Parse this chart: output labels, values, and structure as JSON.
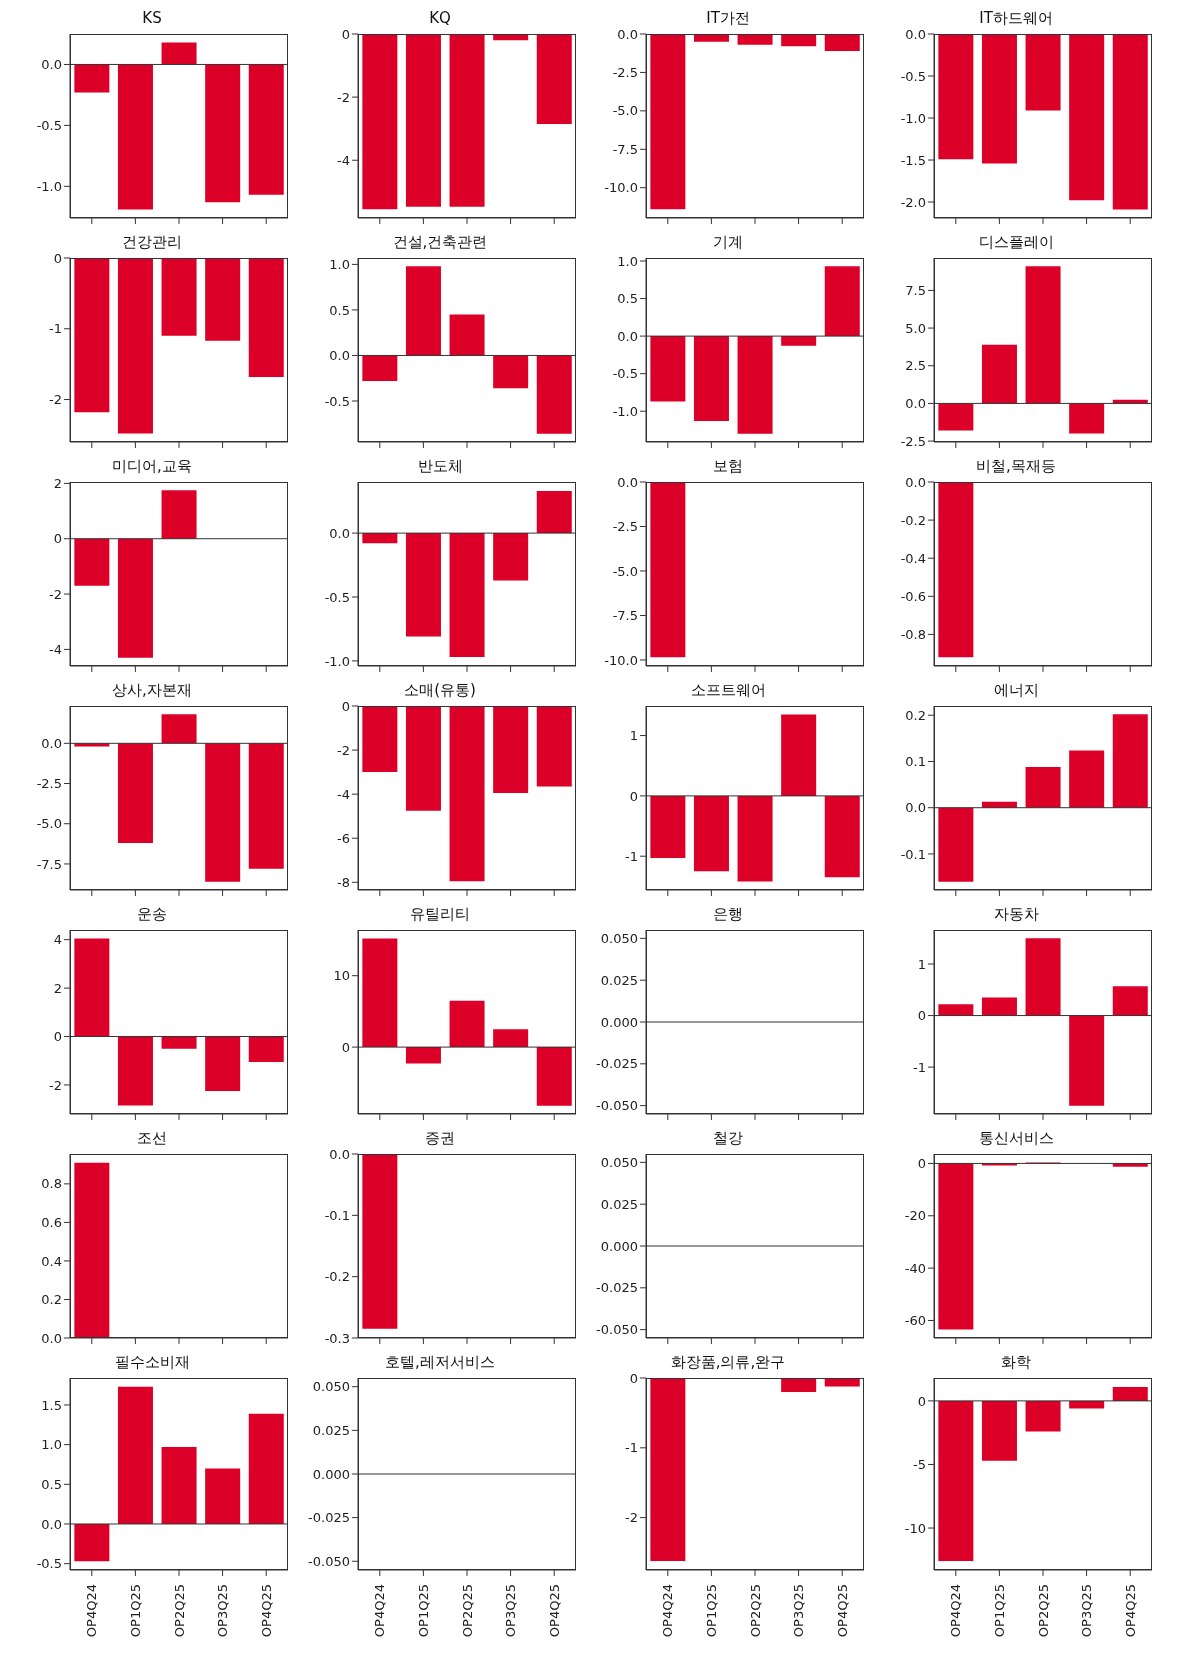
{
  "chart_data": [
    {
      "type": "bar",
      "title": "KS",
      "categories": [
        null,
        null,
        null,
        null,
        null
      ],
      "values": [
        -0.23,
        -1.19,
        0.18,
        -1.13,
        -1.07
      ],
      "color": "#dc0028",
      "ylim": [
        -1.26,
        0.25
      ],
      "yticks": [
        {
          "value": -1,
          "label": "-1.0"
        },
        {
          "value": -0.5,
          "label": "-0.5"
        },
        {
          "value": 0,
          "label": "0.0"
        }
      ],
      "ref_lines": [
        {
          "axis": "y",
          "value": 0
        }
      ],
      "tick_labels": "y"
    },
    {
      "type": "bar",
      "title": "KQ",
      "categories": [
        null,
        null,
        null,
        null,
        null
      ],
      "values": [
        -5.55,
        -5.47,
        -5.47,
        -0.2,
        -2.85
      ],
      "color": "#dc0028",
      "ylim": [
        -5.83,
        0
      ],
      "yticks": [
        -4,
        -2,
        0
      ],
      "tick_labels": "y"
    },
    {
      "type": "bar",
      "title": "IT가전",
      "categories": [
        null,
        null,
        null,
        null,
        null
      ],
      "values": [
        -11.4,
        -0.5,
        -0.7,
        -0.8,
        -1.1
      ],
      "color": "#dc0028",
      "ylim": [
        -11.97,
        0
      ],
      "yticks": [
        {
          "value": -10,
          "label": "-10.0"
        },
        {
          "value": -7.5,
          "label": "-7.5"
        },
        {
          "value": -5,
          "label": "-5.0"
        },
        {
          "value": -2.5,
          "label": "-2.5"
        },
        {
          "value": 0,
          "label": "0.0"
        }
      ],
      "tick_labels": "y"
    },
    {
      "type": "bar",
      "title": "IT하드웨어",
      "categories": [
        null,
        null,
        null,
        null,
        null
      ],
      "values": [
        -1.49,
        -1.54,
        -0.91,
        -1.98,
        -2.09
      ],
      "color": "#dc0028",
      "ylim": [
        -2.19,
        0
      ],
      "yticks": [
        {
          "value": -2,
          "label": "-2.0"
        },
        {
          "value": -1.5,
          "label": "-1.5"
        },
        {
          "value": -1,
          "label": "-1.0"
        },
        {
          "value": -0.5,
          "label": "-0.5"
        },
        {
          "value": 0,
          "label": "0.0"
        }
      ],
      "tick_labels": "y"
    },
    {
      "type": "bar",
      "title": "건강관리",
      "categories": [
        null,
        null,
        null,
        null,
        null
      ],
      "values": [
        -2.18,
        -2.48,
        -1.1,
        -1.17,
        -1.68
      ],
      "color": "#dc0028",
      "ylim": [
        -2.6,
        0
      ],
      "yticks": [
        -2,
        -1,
        0
      ],
      "tick_labels": "y"
    },
    {
      "type": "bar",
      "title": "건설,건축관련",
      "categories": [
        null,
        null,
        null,
        null,
        null
      ],
      "values": [
        -0.28,
        0.98,
        0.45,
        -0.36,
        -0.86
      ],
      "color": "#dc0028",
      "ylim": [
        -0.95,
        1.07
      ],
      "yticks": [
        {
          "value": -0.5,
          "label": "-0.5"
        },
        {
          "value": 0,
          "label": "0.0"
        },
        {
          "value": 0.5,
          "label": "0.5"
        },
        {
          "value": 1,
          "label": "1.0"
        }
      ],
      "ref_lines": [
        {
          "axis": "y",
          "value": 0
        }
      ],
      "tick_labels": "y"
    },
    {
      "type": "bar",
      "title": "기계",
      "categories": [
        null,
        null,
        null,
        null,
        null
      ],
      "values": [
        -0.87,
        -1.13,
        -1.3,
        -0.13,
        0.93
      ],
      "color": "#dc0028",
      "ylim": [
        -1.41,
        1.04
      ],
      "yticks": [
        {
          "value": -1,
          "label": "-1.0"
        },
        {
          "value": -0.5,
          "label": "-0.5"
        },
        {
          "value": 0,
          "label": "0.0"
        },
        {
          "value": 0.5,
          "label": "0.5"
        },
        {
          "value": 1,
          "label": "1.0"
        }
      ],
      "ref_lines": [
        {
          "axis": "y",
          "value": 0
        }
      ],
      "tick_labels": "y"
    },
    {
      "type": "bar",
      "title": "디스플레이",
      "categories": [
        null,
        null,
        null,
        null,
        null
      ],
      "values": [
        -1.8,
        3.9,
        9.1,
        -2.0,
        0.25
      ],
      "color": "#dc0028",
      "ylim": [
        -2.56,
        9.65
      ],
      "yticks": [
        {
          "value": -2.5,
          "label": "-2.5"
        },
        {
          "value": 0,
          "label": "0.0"
        },
        {
          "value": 2.5,
          "label": "2.5"
        },
        {
          "value": 5,
          "label": "5.0"
        },
        {
          "value": 7.5,
          "label": "7.5"
        }
      ],
      "ref_lines": [
        {
          "axis": "y",
          "value": 0
        }
      ],
      "tick_labels": "y"
    },
    {
      "type": "bar",
      "title": "미디어,교육",
      "categories": [
        null,
        null,
        null,
        null,
        null
      ],
      "values": [
        -1.7,
        -4.3,
        1.75,
        null,
        null
      ],
      "color": "#dc0028",
      "ylim": [
        -4.6,
        2.05
      ],
      "yticks": [
        -4,
        -2,
        0,
        2
      ],
      "ref_lines": [
        {
          "axis": "y",
          "value": 0
        }
      ],
      "tick_labels": "y"
    },
    {
      "type": "bar",
      "title": "반도체",
      "categories": [
        null,
        null,
        null,
        null,
        null
      ],
      "values": [
        -0.08,
        -0.81,
        -0.97,
        -0.37,
        0.33
      ],
      "color": "#dc0028",
      "ylim": [
        -1.04,
        0.4
      ],
      "yticks": [
        {
          "value": -1,
          "label": "-1.0"
        },
        {
          "value": -0.5,
          "label": "-0.5"
        },
        {
          "value": 0,
          "label": "0.0"
        }
      ],
      "ref_lines": [
        {
          "axis": "y",
          "value": 0
        }
      ],
      "tick_labels": "y"
    },
    {
      "type": "bar",
      "title": "보험",
      "categories": [
        null,
        null,
        null,
        null,
        null
      ],
      "values": [
        -9.85,
        null,
        null,
        null,
        null
      ],
      "color": "#dc0028",
      "ylim": [
        -10.34,
        0
      ],
      "yticks": [
        {
          "value": -10,
          "label": "-10.0"
        },
        {
          "value": -7.5,
          "label": "-7.5"
        },
        {
          "value": -5,
          "label": "-5.0"
        },
        {
          "value": -2.5,
          "label": "-2.5"
        },
        {
          "value": 0,
          "label": "0.0"
        }
      ],
      "tick_labels": "y"
    },
    {
      "type": "bar",
      "title": "비철,목재등",
      "categories": [
        null,
        null,
        null,
        null,
        null
      ],
      "values": [
        -0.92,
        null,
        null,
        null,
        null
      ],
      "color": "#dc0028",
      "ylim": [
        -0.966,
        0
      ],
      "yticks": [
        {
          "value": -0.8,
          "label": "-0.8"
        },
        {
          "value": -0.6,
          "label": "-0.6"
        },
        {
          "value": -0.4,
          "label": "-0.4"
        },
        {
          "value": -0.2,
          "label": "-0.2"
        },
        {
          "value": 0,
          "label": "0.0"
        }
      ],
      "tick_labels": "y"
    },
    {
      "type": "bar",
      "title": "상사,자본재",
      "categories": [
        null,
        null,
        null,
        null,
        null
      ],
      "values": [
        -0.2,
        -6.2,
        1.8,
        -8.6,
        -7.8
      ],
      "color": "#dc0028",
      "ylim": [
        -9.12,
        2.32
      ],
      "yticks": [
        {
          "value": -7.5,
          "label": "-7.5"
        },
        {
          "value": -5,
          "label": "-5.0"
        },
        {
          "value": -2.5,
          "label": "-2.5"
        },
        {
          "value": 0,
          "label": "0.0"
        }
      ],
      "ref_lines": [
        {
          "axis": "y",
          "value": 0
        }
      ],
      "tick_labels": "y"
    },
    {
      "type": "bar",
      "title": "소매(유통)",
      "categories": [
        null,
        null,
        null,
        null,
        null
      ],
      "values": [
        -3.0,
        -4.75,
        -7.95,
        -3.95,
        -3.65
      ],
      "color": "#dc0028",
      "ylim": [
        -8.35,
        0
      ],
      "yticks": [
        -8,
        -6,
        -4,
        -2,
        0
      ],
      "tick_labels": "y"
    },
    {
      "type": "bar",
      "title": "소프트웨어",
      "categories": [
        null,
        null,
        null,
        null,
        null
      ],
      "values": [
        -1.03,
        -1.25,
        -1.42,
        1.35,
        -1.35
      ],
      "color": "#dc0028",
      "ylim": [
        -1.56,
        1.49
      ],
      "yticks": [
        -1,
        0,
        1
      ],
      "ref_lines": [
        {
          "axis": "y",
          "value": 0
        }
      ],
      "tick_labels": "y"
    },
    {
      "type": "bar",
      "title": "에너지",
      "categories": [
        null,
        null,
        null,
        null,
        null
      ],
      "values": [
        -0.16,
        0.013,
        0.088,
        0.124,
        0.202
      ],
      "color": "#dc0028",
      "ylim": [
        -0.178,
        0.22
      ],
      "yticks": [
        {
          "value": -0.1,
          "label": "-0.1"
        },
        {
          "value": 0,
          "label": "0.0"
        },
        {
          "value": 0.1,
          "label": "0.1"
        },
        {
          "value": 0.2,
          "label": "0.2"
        }
      ],
      "ref_lines": [
        {
          "axis": "y",
          "value": 0
        }
      ],
      "tick_labels": "y"
    },
    {
      "type": "bar",
      "title": "운송",
      "categories": [
        null,
        null,
        null,
        null,
        null
      ],
      "values": [
        4.05,
        -2.85,
        -0.5,
        -2.25,
        -1.05
      ],
      "color": "#dc0028",
      "ylim": [
        -3.2,
        4.4
      ],
      "yticks": [
        -2,
        0,
        2,
        4
      ],
      "ref_lines": [
        {
          "axis": "y",
          "value": 0
        }
      ],
      "tick_labels": "y"
    },
    {
      "type": "bar",
      "title": "유틸리티",
      "categories": [
        null,
        null,
        null,
        null,
        null
      ],
      "values": [
        15.2,
        -2.3,
        6.5,
        2.5,
        -8.2
      ],
      "color": "#dc0028",
      "ylim": [
        -9.37,
        16.4
      ],
      "yticks": [
        0,
        10
      ],
      "ref_lines": [
        {
          "axis": "y",
          "value": 0
        }
      ],
      "tick_labels": "y"
    },
    {
      "type": "bar",
      "title": "은행",
      "categories": [
        null,
        null,
        null,
        null,
        null
      ],
      "values": [
        null,
        null,
        null,
        null,
        null
      ],
      "color": "#dc0028",
      "ylim": [
        -0.055,
        0.055
      ],
      "yticks": [
        {
          "value": -0.05,
          "label": "-0.050"
        },
        {
          "value": -0.025,
          "label": "-0.025"
        },
        {
          "value": 0,
          "label": "0.000"
        },
        {
          "value": 0.025,
          "label": "0.025"
        },
        {
          "value": 0.05,
          "label": "0.050"
        }
      ],
      "ref_lines": [
        {
          "axis": "y",
          "value": 0
        }
      ],
      "tick_labels": "y"
    },
    {
      "type": "bar",
      "title": "자동차",
      "categories": [
        null,
        null,
        null,
        null,
        null
      ],
      "values": [
        0.22,
        0.35,
        1.5,
        -1.75,
        0.57
      ],
      "color": "#dc0028",
      "ylim": [
        -1.91,
        1.66
      ],
      "yticks": [
        -1,
        0,
        1
      ],
      "ref_lines": [
        {
          "axis": "y",
          "value": 0
        }
      ],
      "tick_labels": "y"
    },
    {
      "type": "bar",
      "title": "조선",
      "categories": [
        null,
        null,
        null,
        null,
        null
      ],
      "values": [
        0.91,
        null,
        null,
        null,
        null
      ],
      "color": "#dc0028",
      "ylim": [
        0,
        0.955
      ],
      "yticks": [
        {
          "value": 0,
          "label": "0.0"
        },
        {
          "value": 0.2,
          "label": "0.2"
        },
        {
          "value": 0.4,
          "label": "0.4"
        },
        {
          "value": 0.6,
          "label": "0.6"
        },
        {
          "value": 0.8,
          "label": "0.8"
        }
      ],
      "tick_labels": "y"
    },
    {
      "type": "bar",
      "title": "증권",
      "categories": [
        null,
        null,
        null,
        null,
        null
      ],
      "values": [
        -0.285,
        null,
        null,
        null,
        null
      ],
      "color": "#dc0028",
      "ylim": [
        -0.3,
        0
      ],
      "yticks": [
        {
          "value": -0.3,
          "label": "-0.3"
        },
        {
          "value": -0.2,
          "label": "-0.2"
        },
        {
          "value": -0.1,
          "label": "-0.1"
        },
        {
          "value": 0,
          "label": "0.0"
        }
      ],
      "tick_labels": "y"
    },
    {
      "type": "bar",
      "title": "철강",
      "categories": [
        null,
        null,
        null,
        null,
        null
      ],
      "values": [
        null,
        null,
        null,
        null,
        null
      ],
      "color": "#dc0028",
      "ylim": [
        -0.055,
        0.055
      ],
      "yticks": [
        {
          "value": -0.05,
          "label": "-0.050"
        },
        {
          "value": -0.025,
          "label": "-0.025"
        },
        {
          "value": 0,
          "label": "0.000"
        },
        {
          "value": 0.025,
          "label": "0.025"
        },
        {
          "value": 0.05,
          "label": "0.050"
        }
      ],
      "ref_lines": [
        {
          "axis": "y",
          "value": 0
        }
      ],
      "tick_labels": "y"
    },
    {
      "type": "bar",
      "title": "통신서비스",
      "categories": [
        null,
        null,
        null,
        null,
        null
      ],
      "values": [
        -63.5,
        -0.8,
        0.4,
        null,
        -1.3
      ],
      "color": "#dc0028",
      "ylim": [
        -66.7,
        3.6
      ],
      "yticks": [
        -60,
        -40,
        -20,
        0
      ],
      "ref_lines": [
        {
          "axis": "y",
          "value": 0
        }
      ],
      "tick_labels": "y"
    },
    {
      "type": "bar",
      "title": "필수소비재",
      "categories": [
        "OP4Q24",
        "OP1Q25",
        "OP2Q25",
        "OP3Q25",
        "OP4Q25"
      ],
      "values": [
        -0.47,
        1.73,
        0.97,
        0.7,
        1.39
      ],
      "color": "#dc0028",
      "ylim": [
        -0.58,
        1.84
      ],
      "yticks": [
        {
          "value": -0.5,
          "label": "-0.5"
        },
        {
          "value": 0,
          "label": "0.0"
        },
        {
          "value": 0.5,
          "label": "0.5"
        },
        {
          "value": 1,
          "label": "1.0"
        },
        {
          "value": 1.5,
          "label": "1.5"
        }
      ],
      "ref_lines": [
        {
          "axis": "y",
          "value": 0
        }
      ]
    },
    {
      "type": "bar",
      "title": "호텔,레저서비스",
      "categories": [
        "OP4Q24",
        "OP1Q25",
        "OP2Q25",
        "OP3Q25",
        "OP4Q25"
      ],
      "values": [
        null,
        null,
        null,
        null,
        null
      ],
      "color": "#dc0028",
      "ylim": [
        -0.055,
        0.055
      ],
      "yticks": [
        {
          "value": -0.05,
          "label": "-0.050"
        },
        {
          "value": -0.025,
          "label": "-0.025"
        },
        {
          "value": 0,
          "label": "0.000"
        },
        {
          "value": 0.025,
          "label": "0.025"
        },
        {
          "value": 0.05,
          "label": "0.050"
        }
      ],
      "ref_lines": [
        {
          "axis": "y",
          "value": 0
        }
      ]
    },
    {
      "type": "bar",
      "title": "화장품,의류,완구",
      "categories": [
        "OP4Q24",
        "OP1Q25",
        "OP2Q25",
        "OP3Q25",
        "OP4Q25"
      ],
      "values": [
        -2.62,
        null,
        null,
        -0.2,
        -0.12
      ],
      "color": "#dc0028",
      "ylim": [
        -2.75,
        0
      ],
      "yticks": [
        -2,
        -1,
        0
      ]
    },
    {
      "type": "bar",
      "title": "화학",
      "categories": [
        "OP4Q24",
        "OP1Q25",
        "OP2Q25",
        "OP3Q25",
        "OP4Q25"
      ],
      "values": [
        -12.6,
        -4.7,
        -2.4,
        -0.6,
        1.1
      ],
      "color": "#dc0028",
      "ylim": [
        -13.3,
        1.8
      ],
      "yticks": [
        -10,
        -5,
        0
      ],
      "ref_lines": [
        {
          "axis": "y",
          "value": 0
        }
      ]
    }
  ]
}
